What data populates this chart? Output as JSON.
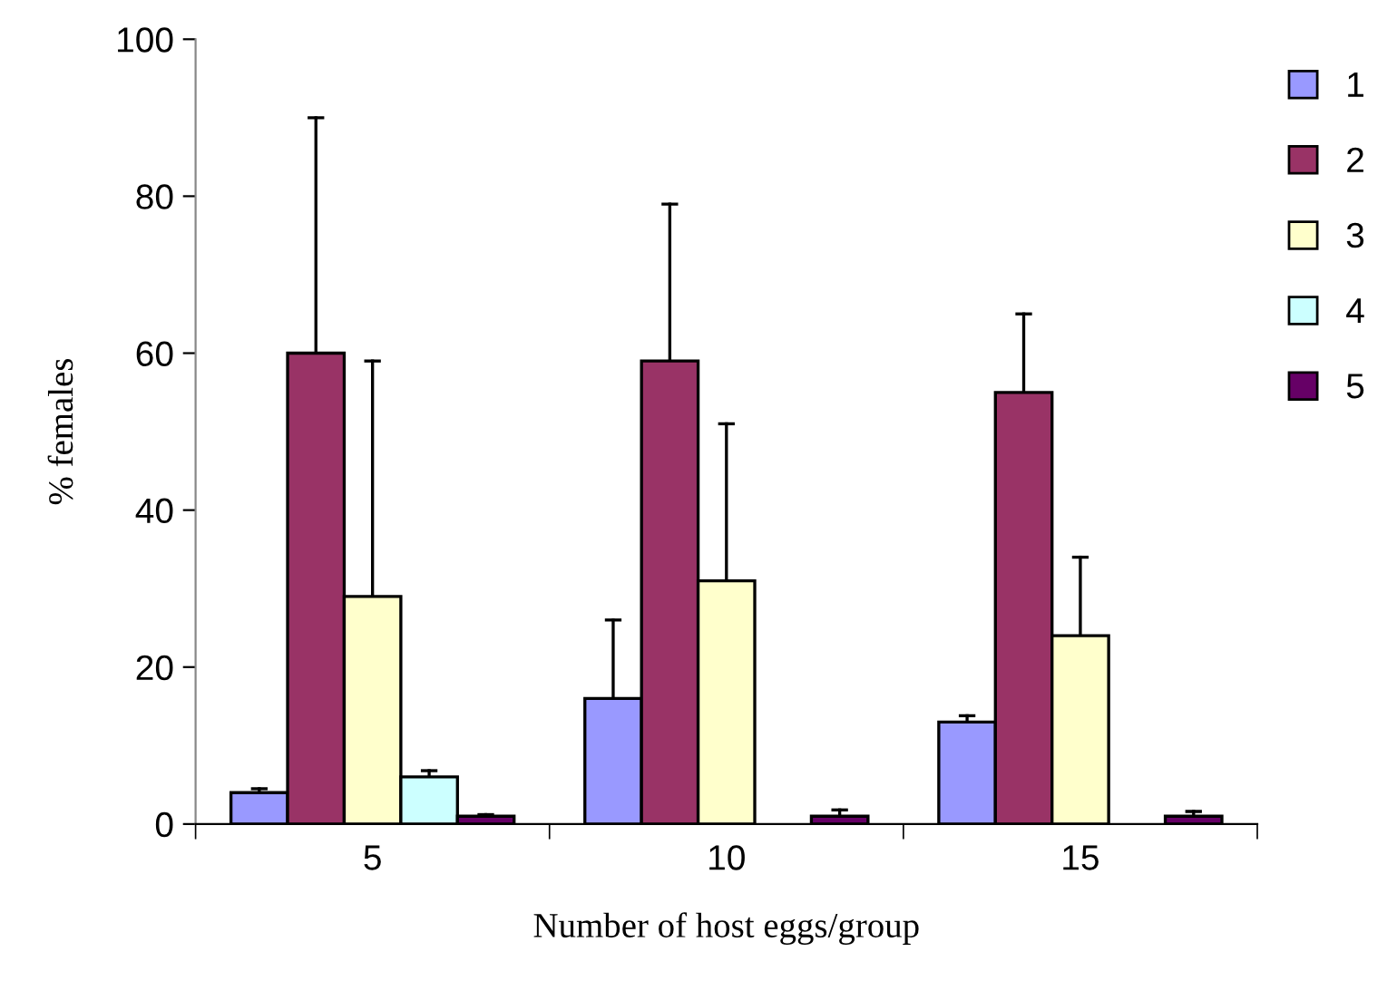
{
  "chart_data": {
    "type": "bar",
    "xlabel": "Number of host eggs/group",
    "ylabel": "% females",
    "categories": [
      "5",
      "10",
      "15"
    ],
    "series": [
      {
        "name": "1",
        "color": "#9999ff",
        "values": [
          4,
          16,
          13
        ],
        "errors": [
          [
            4,
            4.5
          ],
          [
            16,
            26
          ],
          [
            13,
            13.8
          ]
        ]
      },
      {
        "name": "2",
        "color": "#993366",
        "values": [
          60,
          59,
          55
        ],
        "errors": [
          [
            60,
            90
          ],
          [
            59,
            79
          ],
          [
            55,
            65
          ]
        ]
      },
      {
        "name": "3",
        "color": "#ffffcc",
        "values": [
          29,
          31,
          24
        ],
        "errors": [
          [
            29,
            59
          ],
          [
            31,
            51
          ],
          [
            24,
            34
          ]
        ]
      },
      {
        "name": "4",
        "color": "#ccffff",
        "values": [
          6,
          null,
          null
        ],
        "errors": [
          [
            6,
            6.8
          ],
          null,
          null
        ]
      },
      {
        "name": "5",
        "color": "#660066",
        "values": [
          1,
          1,
          1
        ],
        "errors": [
          [
            1,
            1.2
          ],
          [
            1,
            1.8
          ],
          [
            1,
            1.6
          ]
        ]
      }
    ],
    "ylim": [
      0,
      100
    ],
    "yticks": [
      0,
      20,
      40,
      60,
      80,
      100
    ],
    "grid": false,
    "legend": "top right"
  }
}
